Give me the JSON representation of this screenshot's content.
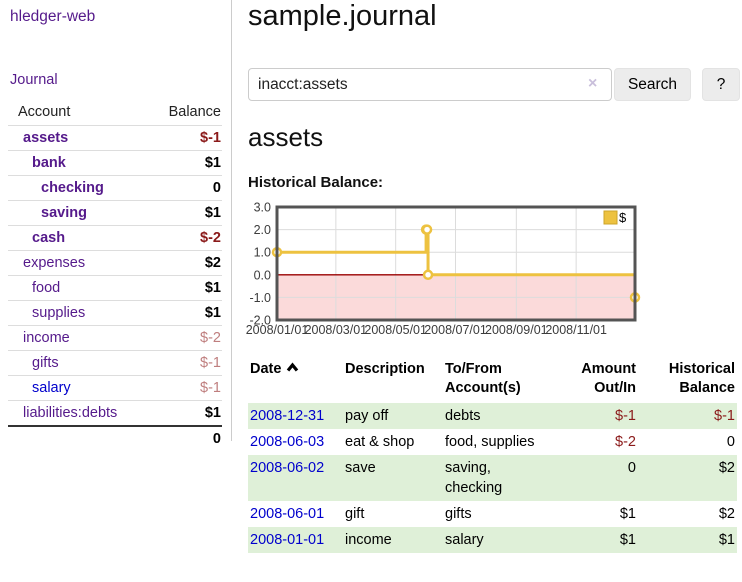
{
  "app": {
    "brand": "hledger-web"
  },
  "sidebar": {
    "nav": [
      {
        "label": "Journal"
      }
    ],
    "accounts_table": {
      "headers": [
        "Account",
        "Balance"
      ],
      "rows": [
        {
          "name": "assets",
          "indent": 1,
          "bold": true,
          "name_color": "purple",
          "balance": "$-1",
          "balance_style": "neg-strong"
        },
        {
          "name": "bank",
          "indent": 2,
          "bold": true,
          "name_color": "purple",
          "balance": "$1",
          "balance_style": "pos"
        },
        {
          "name": "checking",
          "indent": 3,
          "bold": true,
          "name_color": "purple",
          "balance": "0",
          "balance_style": "pos"
        },
        {
          "name": "saving",
          "indent": 3,
          "bold": true,
          "name_color": "purple",
          "balance": "$1",
          "balance_style": "pos"
        },
        {
          "name": "cash",
          "indent": 2,
          "bold": true,
          "name_color": "purple",
          "balance": "$-2",
          "balance_style": "neg-strong"
        },
        {
          "name": "expenses",
          "indent": 1,
          "bold": false,
          "name_color": "purple",
          "balance": "$2",
          "balance_style": "pos"
        },
        {
          "name": "food",
          "indent": 2,
          "bold": false,
          "name_color": "purple",
          "balance": "$1",
          "balance_style": "pos"
        },
        {
          "name": "supplies",
          "indent": 2,
          "bold": false,
          "name_color": "purple",
          "balance": "$1",
          "balance_style": "pos"
        },
        {
          "name": "income",
          "indent": 1,
          "bold": false,
          "name_color": "purple",
          "balance": "$-2",
          "balance_style": "neg-light"
        },
        {
          "name": "gifts",
          "indent": 2,
          "bold": false,
          "name_color": "purple",
          "balance": "$-1",
          "balance_style": "neg-light"
        },
        {
          "name": "salary",
          "indent": 2,
          "bold": false,
          "name_color": "blue",
          "balance": "$-1",
          "balance_style": "neg-light"
        },
        {
          "name": "liabilities:debts",
          "indent": 1,
          "bold": false,
          "name_color": "purple",
          "balance": "$1",
          "balance_style": "pos"
        }
      ],
      "total": "0"
    }
  },
  "main": {
    "title": "sample.journal",
    "search": {
      "query": "inacct:assets",
      "clear_icon": "×",
      "search_label": "Search",
      "help_label": "?"
    },
    "account_heading": "assets",
    "chart_label": "Historical Balance:",
    "register_table": {
      "headers": {
        "date": "Date",
        "description": "Description",
        "to_from": "To/From Account(s)",
        "amount": "Amount Out/In",
        "balance": "Historical Balance"
      },
      "rows": [
        {
          "date": "2008-12-31",
          "description": "pay off",
          "to_from_lines": [
            "debts"
          ],
          "amount": "$-1",
          "amount_neg": true,
          "balance": "$-1",
          "balance_neg": true,
          "shade": true
        },
        {
          "date": "2008-06-03",
          "description": "eat & shop",
          "to_from_lines": [
            "food, supplies"
          ],
          "amount": "$-2",
          "amount_neg": true,
          "balance": "0",
          "balance_neg": false,
          "shade": false
        },
        {
          "date": "2008-06-02",
          "description": "save",
          "to_from_lines": [
            "saving,",
            "checking"
          ],
          "amount": "0",
          "amount_neg": false,
          "balance": "$2",
          "balance_neg": false,
          "shade": true
        },
        {
          "date": "2008-06-01",
          "description": "gift",
          "to_from_lines": [
            "gifts"
          ],
          "amount": "$1",
          "amount_neg": false,
          "balance": "$2",
          "balance_neg": false,
          "shade": false
        },
        {
          "date": "2008-01-01",
          "description": "income",
          "to_from_lines": [
            "salary"
          ],
          "amount": "$1",
          "amount_neg": false,
          "balance": "$1",
          "balance_neg": false,
          "shade": true
        }
      ]
    }
  },
  "chart_data": {
    "type": "line",
    "step": true,
    "title": "Historical Balance",
    "series": [
      {
        "name": "$",
        "color": "#edc240",
        "points": [
          {
            "date": "2008-01-01",
            "day": 0,
            "value": 1
          },
          {
            "date": "2008-06-01",
            "day": 152,
            "value": 2
          },
          {
            "date": "2008-06-02",
            "day": 153,
            "value": 2
          },
          {
            "date": "2008-06-03",
            "day": 154,
            "value": 0
          },
          {
            "date": "2008-12-31",
            "day": 365,
            "value": -1
          }
        ]
      }
    ],
    "x_ticks": [
      {
        "label": "2008/01/01",
        "day": 0
      },
      {
        "label": "2008/03/01",
        "day": 60
      },
      {
        "label": "2008/05/01",
        "day": 121
      },
      {
        "label": "2008/07/01",
        "day": 182
      },
      {
        "label": "2008/09/01",
        "day": 244
      },
      {
        "label": "2008/11/01",
        "day": 305
      }
    ],
    "x_range_days": [
      0,
      365
    ],
    "y_ticks": [
      "3.0",
      "2.0",
      "1.0",
      "0.0",
      "-1.0",
      "-2.0"
    ],
    "ylim": [
      -2,
      3
    ],
    "grid": true,
    "legend": {
      "label": "$",
      "position": "top-right"
    },
    "colors": {
      "line": "#edc240",
      "marker_fill": "#ffffff",
      "legend_square_border": "#cda428",
      "negative_region_fill": "#fbdada",
      "zero_line": "#990000",
      "gridline": "#dcdcdc",
      "frame": "#545454",
      "tick_text": "#3c3c3c"
    }
  },
  "colors": {
    "link_purple": "#551a8b",
    "link_blue": "#0000cc",
    "negative_strong": "#8b1a1a",
    "negative_light": "#bf7e7e",
    "row_green": "#dff0d8",
    "button_bg": "#ececec",
    "divider": "#cccccc"
  }
}
